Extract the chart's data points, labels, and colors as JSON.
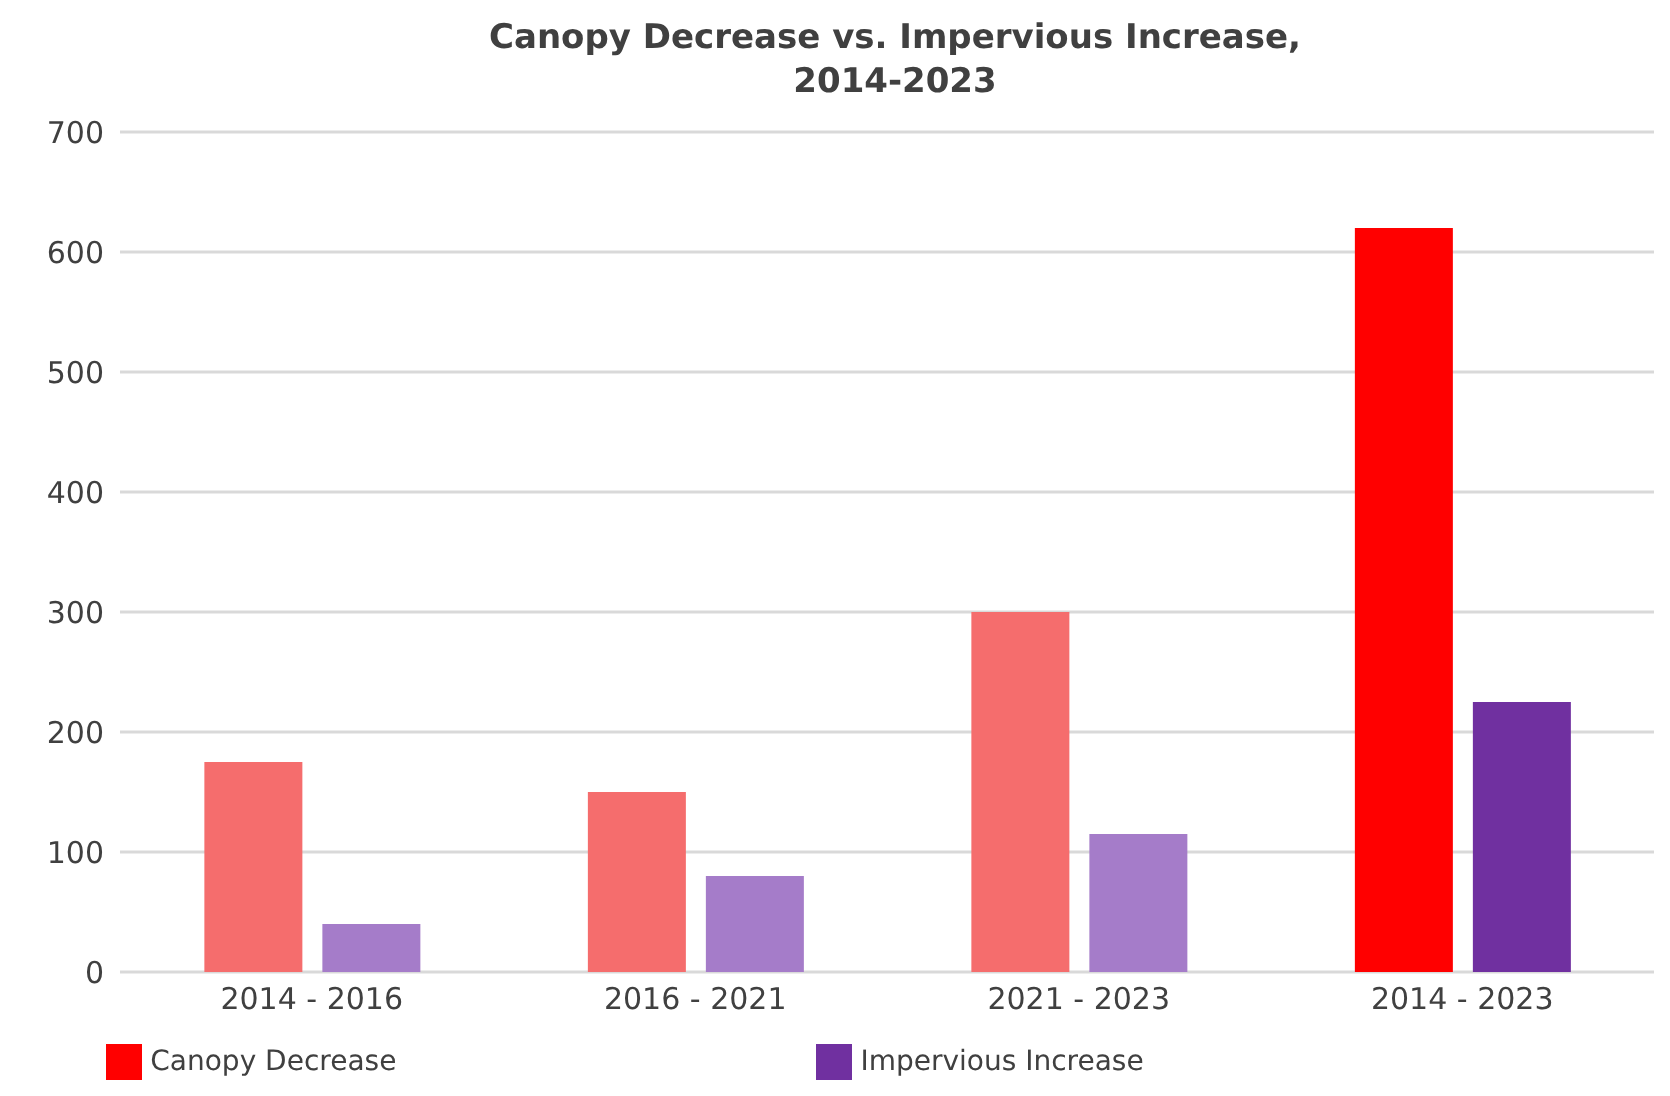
{
  "chart_data": {
    "type": "bar",
    "title": "Canopy Decrease vs. Impervious Increase,\n2014-2023",
    "categories": [
      "2014 - 2016",
      "2016 - 2021",
      "2021 - 2023",
      "2014 - 2023"
    ],
    "series": [
      {
        "name": "Canopy Decrease",
        "color": "#ff0000",
        "colors": [
          "#f56d6d",
          "#f56d6d",
          "#f56d6d",
          "#ff0000"
        ],
        "values": [
          175,
          150,
          300,
          620
        ]
      },
      {
        "name": "Impervious Increase",
        "color": "#7030a0",
        "colors": [
          "#a57cc9",
          "#a57cc9",
          "#a57cc9",
          "#7030a0"
        ],
        "values": [
          40,
          80,
          115,
          225
        ]
      }
    ],
    "ylim": [
      0,
      700
    ],
    "yticks": [
      0,
      100,
      200,
      300,
      400,
      500,
      600,
      700
    ],
    "grid": "y",
    "legend": "bottom"
  }
}
